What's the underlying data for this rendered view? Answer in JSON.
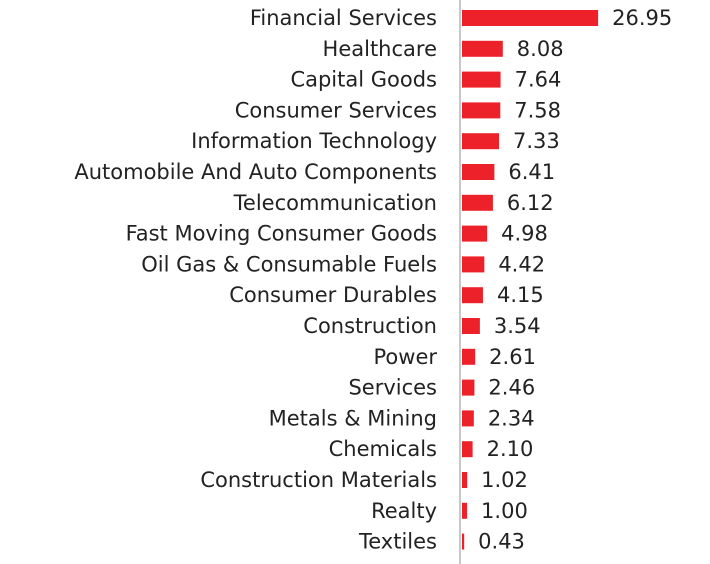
{
  "chart_data": {
    "type": "bar",
    "orientation": "horizontal",
    "color": "#ec2129",
    "categories": [
      "Financial Services",
      "Healthcare",
      "Capital Goods",
      "Consumer Services",
      "Information Technology",
      "Automobile And Auto Components",
      "Telecommunication",
      "Fast Moving Consumer Goods",
      "Oil Gas & Consumable Fuels",
      "Consumer Durables",
      "Construction",
      "Power",
      "Services",
      "Metals & Mining",
      "Chemicals",
      "Construction Materials",
      "Realty",
      "Textiles"
    ],
    "values": [
      26.95,
      8.08,
      7.64,
      7.58,
      7.33,
      6.41,
      6.12,
      4.98,
      4.42,
      4.15,
      3.54,
      2.61,
      2.46,
      2.34,
      2.1,
      1.02,
      1,
      0.43
    ],
    "value_labels": [
      "26.95",
      "8.08",
      "7.64",
      "7.58",
      "7.33",
      "6.41",
      "6.12",
      "4.98",
      "4.42",
      "4.15",
      "3.54",
      "2.61",
      "2.46",
      "2.34",
      "2.10",
      "1.02",
      "1.00",
      "0.43"
    ]
  }
}
